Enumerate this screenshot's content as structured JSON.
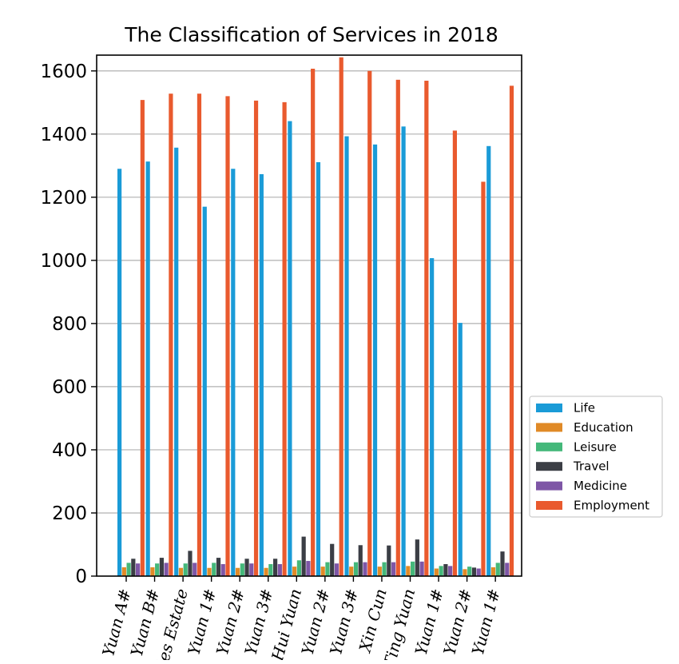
{
  "chart_data": {
    "type": "bar",
    "title": "The Classification of Services in 2018",
    "xlabel": "",
    "ylabel": "",
    "ylim": [
      0,
      1650
    ],
    "yticks": [
      0,
      200,
      400,
      600,
      800,
      1000,
      1200,
      1400,
      1600
    ],
    "grid": "horizontal",
    "legend_position": "right",
    "categories": [
      "Yuan A#",
      "Yuan B#",
      "les Estate",
      "Yuan 1#",
      "Yuan 2#",
      "Yuan 3#",
      "Hui Yuan",
      "Yuan 2#",
      "Yuan 3#",
      "Xin Cun",
      "Ting Yuan",
      "Yuan 1#",
      "Yuan 2#",
      "Yuan 1#"
    ],
    "series": [
      {
        "name": "Life",
        "color": "#1a9bd7",
        "values": [
          1290,
          1313,
          1357,
          1170,
          1290,
          1273,
          1441,
          1311,
          1393,
          1367,
          1424,
          1007,
          802,
          1362
        ]
      },
      {
        "name": "Education",
        "color": "#e08a27",
        "values": [
          28,
          28,
          26,
          26,
          26,
          26,
          30,
          30,
          30,
          30,
          32,
          24,
          22,
          28
        ]
      },
      {
        "name": "Leisure",
        "color": "#44b87a",
        "values": [
          42,
          40,
          40,
          42,
          40,
          38,
          50,
          44,
          44,
          44,
          46,
          32,
          30,
          42
        ]
      },
      {
        "name": "Travel",
        "color": "#3b3e45",
        "values": [
          55,
          58,
          80,
          58,
          55,
          55,
          125,
          102,
          98,
          97,
          116,
          38,
          27,
          78
        ]
      },
      {
        "name": "Medicine",
        "color": "#7e56a6",
        "values": [
          40,
          42,
          42,
          38,
          40,
          38,
          48,
          40,
          44,
          44,
          46,
          32,
          24,
          42
        ]
      },
      {
        "name": "Employment",
        "color": "#e95a2e",
        "values": [
          1508,
          1528,
          1528,
          1520,
          1506,
          1501,
          1607,
          1643,
          1600,
          1572,
          1569,
          1411,
          1249,
          1553
        ]
      }
    ]
  }
}
